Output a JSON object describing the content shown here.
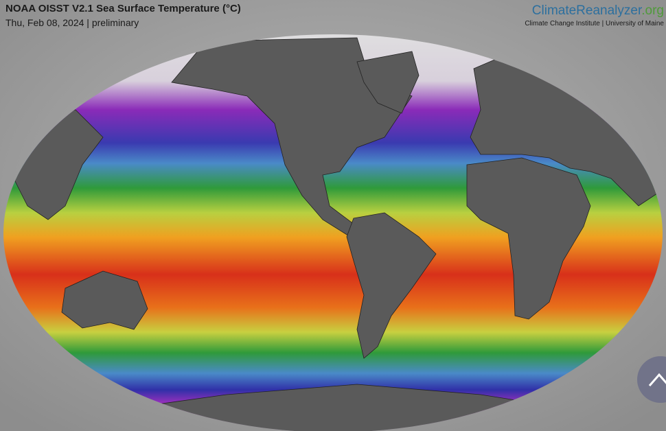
{
  "header": {
    "title": "NOAA OISST V2.1 Sea Surface Temperature (°C)",
    "subtitle": "Thu, Feb 08, 2024 | preliminary"
  },
  "logo": {
    "name": "ClimateReanalyzer",
    "suffix": ".org",
    "tagline": "Climate Change Institute | University of Maine"
  }
}
